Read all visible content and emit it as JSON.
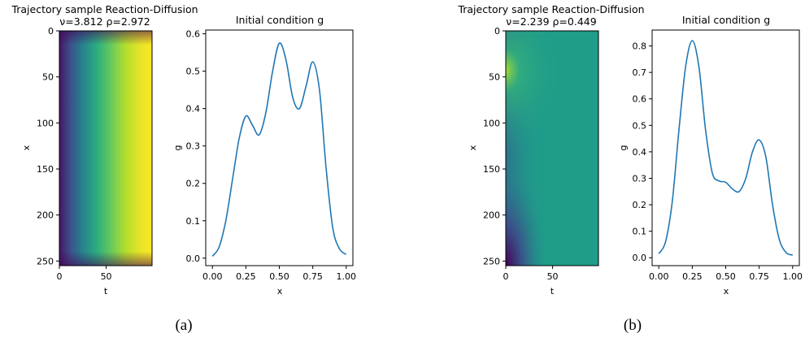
{
  "figure": {
    "caption_a": "(a)",
    "caption_b": "(b)"
  },
  "chart_data": [
    {
      "type": "heatmap",
      "panel": "a",
      "title_line1": "Trajectory sample Reaction-Diffusion",
      "title_line2": "ν=3.812 ρ=2.972",
      "xlabel": "t",
      "ylabel": "x",
      "xlim": [
        0,
        99
      ],
      "ylim": [
        255,
        0
      ],
      "xticks": [
        "0",
        "50"
      ],
      "yticks": [
        "0",
        "50",
        "100",
        "150",
        "200",
        "250"
      ],
      "colormap": "viridis",
      "color_stops": [
        {
          "t": 0,
          "center": 0.06,
          "edge": 0.0
        },
        {
          "t": 12,
          "center": 0.25,
          "edge": 0.12
        },
        {
          "t": 25,
          "center": 0.45,
          "edge": 0.35
        },
        {
          "t": 40,
          "center": 0.62,
          "edge": 0.57
        },
        {
          "t": 55,
          "center": 0.76,
          "edge": 0.74
        },
        {
          "t": 70,
          "center": 0.88,
          "edge": 0.87
        },
        {
          "t": 85,
          "center": 0.96,
          "edge": 0.96
        },
        {
          "t": 99,
          "center": 1.0,
          "edge": 1.0
        }
      ]
    },
    {
      "type": "line",
      "panel": "a",
      "title": "Initial condition g",
      "xlabel": "x",
      "ylabel": "g",
      "xlim": [
        -0.05,
        1.05
      ],
      "ylim": [
        -0.02,
        0.61
      ],
      "xticks": [
        "0.00",
        "0.25",
        "0.50",
        "0.75",
        "1.00"
      ],
      "yticks": [
        "0.0",
        "0.1",
        "0.2",
        "0.3",
        "0.4",
        "0.5",
        "0.6"
      ],
      "color": "#1f77b4",
      "x": [
        0.0,
        0.05,
        0.1,
        0.15,
        0.2,
        0.25,
        0.3,
        0.35,
        0.4,
        0.45,
        0.5,
        0.55,
        0.6,
        0.65,
        0.7,
        0.75,
        0.8,
        0.85,
        0.9,
        0.95,
        1.0
      ],
      "y": [
        0.005,
        0.03,
        0.1,
        0.21,
        0.32,
        0.38,
        0.355,
        0.33,
        0.39,
        0.5,
        0.575,
        0.53,
        0.43,
        0.4,
        0.46,
        0.525,
        0.45,
        0.24,
        0.08,
        0.025,
        0.01
      ]
    },
    {
      "type": "heatmap",
      "panel": "b",
      "title_line1": "Trajectory sample Reaction-Diffusion",
      "title_line2": "ν=2.239 ρ=0.449",
      "xlabel": "t",
      "ylabel": "x",
      "xlim": [
        0,
        99
      ],
      "ylim": [
        255,
        0
      ],
      "xticks": [
        "0",
        "50"
      ],
      "yticks": [
        "0",
        "50",
        "100",
        "150",
        "200",
        "250"
      ],
      "colormap": "viridis",
      "background_value": 0.55
    },
    {
      "type": "line",
      "panel": "b",
      "title": "Initial condition g",
      "xlabel": "x",
      "ylabel": "g",
      "xlim": [
        -0.05,
        1.05
      ],
      "ylim": [
        -0.03,
        0.86
      ],
      "xticks": [
        "0.00",
        "0.25",
        "0.50",
        "0.75",
        "1.00"
      ],
      "yticks": [
        "0.0",
        "0.1",
        "0.2",
        "0.3",
        "0.4",
        "0.5",
        "0.6",
        "0.7",
        "0.8"
      ],
      "color": "#1f77b4",
      "x": [
        0.0,
        0.05,
        0.1,
        0.15,
        0.2,
        0.25,
        0.3,
        0.35,
        0.4,
        0.45,
        0.5,
        0.55,
        0.6,
        0.65,
        0.7,
        0.75,
        0.8,
        0.85,
        0.9,
        0.95,
        1.0
      ],
      "y": [
        0.015,
        0.06,
        0.21,
        0.48,
        0.72,
        0.82,
        0.72,
        0.48,
        0.32,
        0.29,
        0.285,
        0.26,
        0.25,
        0.3,
        0.4,
        0.445,
        0.38,
        0.2,
        0.07,
        0.02,
        0.01
      ]
    }
  ]
}
